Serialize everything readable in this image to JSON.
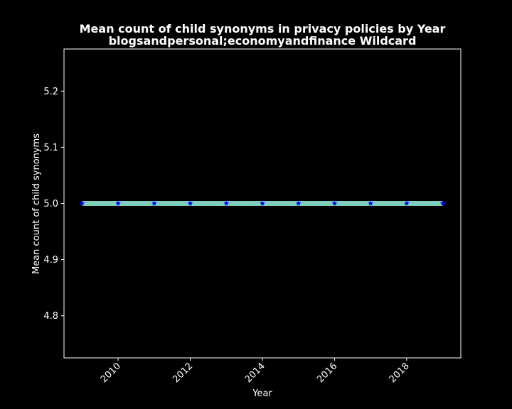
{
  "chart_data": {
    "type": "line",
    "title_line1": "Mean count of child synonyms in privacy policies by Year",
    "title_line2": "blogsandpersonal;economyandfinance Wildcard",
    "xlabel": "Year",
    "ylabel": "Mean count of child synonyms",
    "xlim": [
      2008.5,
      2019.5
    ],
    "ylim": [
      4.725,
      5.275
    ],
    "x_ticks": [
      2010,
      2012,
      2014,
      2016,
      2018
    ],
    "y_ticks": [
      4.8,
      4.9,
      5.0,
      5.1,
      5.2
    ],
    "series": [
      {
        "x": [
          2009,
          2010,
          2011,
          2012,
          2013,
          2014,
          2015,
          2016,
          2017,
          2018,
          2019
        ],
        "values": [
          5.0,
          5.0,
          5.0,
          5.0,
          5.0,
          5.0,
          5.0,
          5.0,
          5.0,
          5.0,
          5.0
        ],
        "line_color": "#7fcdbb",
        "marker_color": "#0000ff",
        "marker": "star"
      }
    ],
    "grid": false,
    "background": "#000000",
    "foreground": "#ffffff"
  }
}
